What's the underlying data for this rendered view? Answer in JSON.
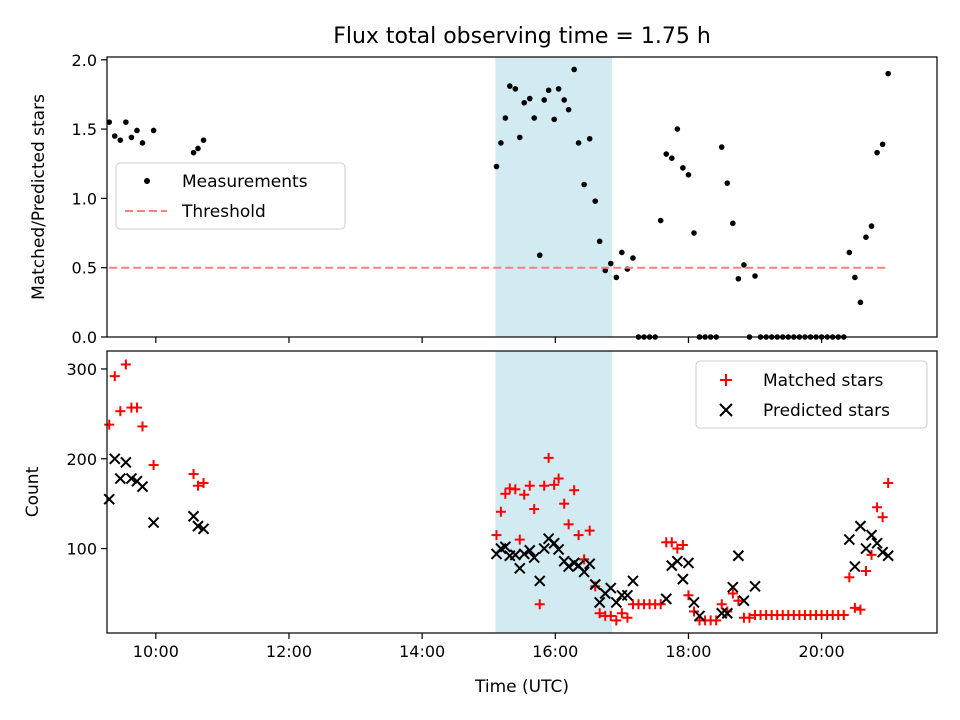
{
  "figure": {
    "title": "Flux total observing time = 1.75 h"
  },
  "chart_data": [
    {
      "type": "scatter",
      "ylabel": "Matched/Predicted stars",
      "ylim": [
        0,
        2.02
      ],
      "yticks": [
        0.0,
        0.5,
        1.0,
        1.5,
        2.0
      ],
      "ytick_labels": [
        "0.0",
        "0.5",
        "1.0",
        "1.5",
        "2.0"
      ],
      "xlim": [
        "09:16",
        "21:44"
      ],
      "xticks": [
        "10:00",
        "12:00",
        "14:00",
        "16:00",
        "18:00",
        "20:00"
      ],
      "shaded_span": {
        "start": "15:06",
        "end": "16:51",
        "color": "#add8e6"
      },
      "legend": {
        "placement": "center-left",
        "entries": [
          "Measurements",
          "Threshold"
        ]
      },
      "series": [
        {
          "name": "Measurements",
          "marker": "dot",
          "color": "#000000",
          "points": [
            [
              "09:18",
              1.55
            ],
            [
              "09:23",
              1.45
            ],
            [
              "09:28",
              1.42
            ],
            [
              "09:33",
              1.55
            ],
            [
              "09:38",
              1.44
            ],
            [
              "09:43",
              1.49
            ],
            [
              "09:48",
              1.4
            ],
            [
              "09:58",
              1.49
            ],
            [
              "10:34",
              1.33
            ],
            [
              "10:38",
              1.36
            ],
            [
              "10:43",
              1.42
            ],
            [
              "15:07",
              1.23
            ],
            [
              "15:11",
              1.4
            ],
            [
              "15:15",
              1.58
            ],
            [
              "15:19",
              1.81
            ],
            [
              "15:24",
              1.79
            ],
            [
              "15:28",
              1.44
            ],
            [
              "15:32",
              1.69
            ],
            [
              "15:37",
              1.72
            ],
            [
              "15:41",
              1.58
            ],
            [
              "15:46",
              0.59
            ],
            [
              "15:50",
              1.71
            ],
            [
              "15:54",
              1.78
            ],
            [
              "15:59",
              1.57
            ],
            [
              "16:03",
              1.79
            ],
            [
              "16:08",
              1.71
            ],
            [
              "16:12",
              1.64
            ],
            [
              "16:17",
              1.93
            ],
            [
              "16:21",
              1.4
            ],
            [
              "16:26",
              1.1
            ],
            [
              "16:31",
              1.43
            ],
            [
              "16:36",
              0.98
            ],
            [
              "16:40",
              0.69
            ],
            [
              "16:45",
              0.48
            ],
            [
              "16:50",
              0.53
            ],
            [
              "16:55",
              0.43
            ],
            [
              "17:00",
              0.61
            ],
            [
              "17:05",
              0.49
            ],
            [
              "17:10",
              0.57
            ],
            [
              "17:15",
              0.0
            ],
            [
              "17:20",
              0.0
            ],
            [
              "17:25",
              0.0
            ],
            [
              "17:30",
              0.0
            ],
            [
              "17:35",
              0.84
            ],
            [
              "17:40",
              1.32
            ],
            [
              "17:45",
              1.29
            ],
            [
              "17:50",
              1.5
            ],
            [
              "17:55",
              1.22
            ],
            [
              "18:00",
              1.17
            ],
            [
              "18:05",
              0.75
            ],
            [
              "18:10",
              0.0
            ],
            [
              "18:15",
              0.0
            ],
            [
              "18:20",
              0.0
            ],
            [
              "18:25",
              0.0
            ],
            [
              "18:30",
              1.37
            ],
            [
              "18:35",
              1.11
            ],
            [
              "18:40",
              0.82
            ],
            [
              "18:45",
              0.42
            ],
            [
              "18:50",
              0.52
            ],
            [
              "18:55",
              0.0
            ],
            [
              "19:00",
              0.44
            ],
            [
              "19:05",
              0.0
            ],
            [
              "19:10",
              0.0
            ],
            [
              "19:15",
              0.0
            ],
            [
              "19:20",
              0.0
            ],
            [
              "19:25",
              0.0
            ],
            [
              "19:30",
              0.0
            ],
            [
              "19:35",
              0.0
            ],
            [
              "19:40",
              0.0
            ],
            [
              "19:45",
              0.0
            ],
            [
              "19:50",
              0.0
            ],
            [
              "19:55",
              0.0
            ],
            [
              "20:00",
              0.0
            ],
            [
              "20:05",
              0.0
            ],
            [
              "20:10",
              0.0
            ],
            [
              "20:15",
              0.0
            ],
            [
              "20:20",
              0.0
            ],
            [
              "20:25",
              0.61
            ],
            [
              "20:30",
              0.43
            ],
            [
              "20:35",
              0.25
            ],
            [
              "20:40",
              0.72
            ],
            [
              "20:45",
              0.8
            ],
            [
              "20:50",
              1.33
            ],
            [
              "20:55",
              1.39
            ],
            [
              "21:00",
              1.9
            ]
          ]
        },
        {
          "name": "Threshold",
          "marker": "dashed-line",
          "color": "#ff7f7f",
          "points": [
            [
              "09:18",
              0.5
            ],
            [
              "21:01",
              0.5
            ]
          ]
        }
      ]
    },
    {
      "type": "scatter",
      "xlabel": "Time (UTC)",
      "ylabel": "Count",
      "ylim": [
        6,
        320
      ],
      "yticks": [
        100,
        200,
        300
      ],
      "ytick_labels": [
        "100",
        "200",
        "300"
      ],
      "xlim": [
        "09:16",
        "21:44"
      ],
      "xticks": [
        "10:00",
        "12:00",
        "14:00",
        "16:00",
        "18:00",
        "20:00"
      ],
      "xtick_labels": [
        "10:00",
        "12:00",
        "14:00",
        "16:00",
        "18:00",
        "20:00"
      ],
      "shaded_span": {
        "start": "15:06",
        "end": "16:51",
        "color": "#add8e6"
      },
      "legend": {
        "placement": "top-right",
        "entries": [
          "Matched stars",
          "Predicted stars"
        ]
      },
      "series": [
        {
          "name": "Matched stars",
          "marker": "plus",
          "color": "#ff0000",
          "points": [
            [
              "09:18",
              238
            ],
            [
              "09:23",
              292
            ],
            [
              "09:28",
              253
            ],
            [
              "09:33",
              305
            ],
            [
              "09:38",
              257
            ],
            [
              "09:43",
              257
            ],
            [
              "09:48",
              236
            ],
            [
              "09:58",
              193
            ],
            [
              "10:34",
              183
            ],
            [
              "10:38",
              170
            ],
            [
              "10:43",
              173
            ],
            [
              "15:07",
              115
            ],
            [
              "15:11",
              141
            ],
            [
              "15:15",
              161
            ],
            [
              "15:19",
              167
            ],
            [
              "15:24",
              166
            ],
            [
              "15:28",
              110
            ],
            [
              "15:32",
              160
            ],
            [
              "15:37",
              170
            ],
            [
              "15:41",
              144
            ],
            [
              "15:46",
              38
            ],
            [
              "15:50",
              170
            ],
            [
              "15:54",
              201
            ],
            [
              "15:59",
              171
            ],
            [
              "16:03",
              178
            ],
            [
              "16:08",
              150
            ],
            [
              "16:12",
              127
            ],
            [
              "16:17",
              165
            ],
            [
              "16:21",
              115
            ],
            [
              "16:26",
              88
            ],
            [
              "16:31",
              120
            ],
            [
              "16:36",
              58
            ],
            [
              "16:40",
              28
            ],
            [
              "16:45",
              25
            ],
            [
              "16:50",
              25
            ],
            [
              "16:55",
              20
            ],
            [
              "17:00",
              28
            ],
            [
              "17:05",
              23
            ],
            [
              "17:10",
              38
            ],
            [
              "17:15",
              38
            ],
            [
              "17:20",
              38
            ],
            [
              "17:25",
              38
            ],
            [
              "17:30",
              38
            ],
            [
              "17:35",
              38
            ],
            [
              "17:40",
              107
            ],
            [
              "17:45",
              107
            ],
            [
              "17:50",
              100
            ],
            [
              "17:55",
              104
            ],
            [
              "18:00",
              48
            ],
            [
              "18:05",
              30
            ],
            [
              "18:10",
              20
            ],
            [
              "18:15",
              20
            ],
            [
              "18:20",
              20
            ],
            [
              "18:25",
              20
            ],
            [
              "18:30",
              38
            ],
            [
              "18:35",
              30
            ],
            [
              "18:40",
              50
            ],
            [
              "18:45",
              42
            ],
            [
              "18:50",
              23
            ],
            [
              "18:55",
              23
            ],
            [
              "19:00",
              26
            ],
            [
              "19:05",
              26
            ],
            [
              "19:10",
              26
            ],
            [
              "19:15",
              26
            ],
            [
              "19:20",
              26
            ],
            [
              "19:25",
              26
            ],
            [
              "19:30",
              26
            ],
            [
              "19:35",
              26
            ],
            [
              "19:40",
              26
            ],
            [
              "19:45",
              26
            ],
            [
              "19:50",
              26
            ],
            [
              "19:55",
              26
            ],
            [
              "20:00",
              26
            ],
            [
              "20:05",
              26
            ],
            [
              "20:10",
              26
            ],
            [
              "20:15",
              26
            ],
            [
              "20:20",
              26
            ],
            [
              "20:25",
              68
            ],
            [
              "20:30",
              34
            ],
            [
              "20:35",
              32
            ],
            [
              "20:40",
              75
            ],
            [
              "20:45",
              93
            ],
            [
              "20:50",
              146
            ],
            [
              "20:55",
              135
            ],
            [
              "21:00",
              173
            ]
          ]
        },
        {
          "name": "Predicted stars",
          "marker": "x",
          "color": "#000000",
          "points": [
            [
              "09:18",
              155
            ],
            [
              "09:23",
              200
            ],
            [
              "09:28",
              178
            ],
            [
              "09:33",
              196
            ],
            [
              "09:38",
              178
            ],
            [
              "09:43",
              175
            ],
            [
              "09:48",
              169
            ],
            [
              "09:58",
              129
            ],
            [
              "10:34",
              136
            ],
            [
              "10:38",
              125
            ],
            [
              "10:43",
              122
            ],
            [
              "15:07",
              94
            ],
            [
              "15:11",
              100
            ],
            [
              "15:15",
              102
            ],
            [
              "15:19",
              92
            ],
            [
              "15:24",
              93
            ],
            [
              "15:28",
              78
            ],
            [
              "15:32",
              94
            ],
            [
              "15:37",
              98
            ],
            [
              "15:41",
              90
            ],
            [
              "15:46",
              64
            ],
            [
              "15:50",
              100
            ],
            [
              "15:54",
              111
            ],
            [
              "15:59",
              106
            ],
            [
              "16:03",
              99
            ],
            [
              "16:08",
              86
            ],
            [
              "16:12",
              80
            ],
            [
              "16:17",
              84
            ],
            [
              "16:21",
              81
            ],
            [
              "16:26",
              74
            ],
            [
              "16:31",
              83
            ],
            [
              "16:36",
              60
            ],
            [
              "16:40",
              40
            ],
            [
              "16:45",
              50
            ],
            [
              "16:50",
              56
            ],
            [
              "16:55",
              40
            ],
            [
              "17:00",
              48
            ],
            [
              "17:05",
              48
            ],
            [
              "17:10",
              64
            ],
            [
              "17:40",
              44
            ],
            [
              "17:45",
              81
            ],
            [
              "17:50",
              86
            ],
            [
              "17:55",
              66
            ],
            [
              "18:00",
              84
            ],
            [
              "18:05",
              40
            ],
            [
              "18:10",
              25
            ],
            [
              "18:30",
              28
            ],
            [
              "18:35",
              28
            ],
            [
              "18:40",
              57
            ],
            [
              "18:45",
              92
            ],
            [
              "18:50",
              42
            ],
            [
              "19:00",
              58
            ],
            [
              "20:25",
              110
            ],
            [
              "20:30",
              80
            ],
            [
              "20:35",
              125
            ],
            [
              "20:40",
              100
            ],
            [
              "20:45",
              115
            ],
            [
              "20:50",
              106
            ],
            [
              "20:55",
              96
            ],
            [
              "21:00",
              92
            ]
          ]
        }
      ]
    }
  ]
}
